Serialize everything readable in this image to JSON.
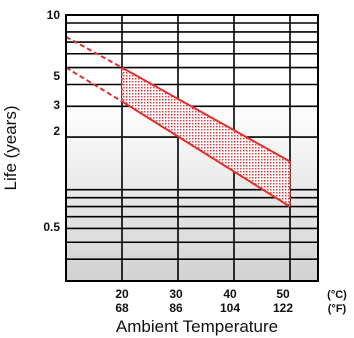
{
  "chart_data": {
    "type": "area",
    "xlabel": "Ambient Temperature",
    "ylabel": "Life (years)",
    "x_ticks_c": [
      "20",
      "30",
      "40",
      "50"
    ],
    "x_ticks_f": [
      "68",
      "86",
      "104",
      "122"
    ],
    "x_unit_c": "(°C)",
    "x_unit_f": "(°F)",
    "xlim": [
      10,
      55
    ],
    "ylim": [
      0.3,
      10
    ],
    "y_scale": "log",
    "y_ticks": [
      "10",
      "5",
      "3",
      "2",
      "0.5"
    ],
    "series": [
      {
        "x": [
          10,
          20,
          50
        ],
        "y": [
          7.5,
          5.0,
          1.45
        ]
      },
      {
        "x": [
          10,
          20,
          50
        ],
        "y": [
          5.0,
          3.2,
          0.8
        ]
      }
    ],
    "colors": {
      "band": "#e03030",
      "fill_dot": "#e04040",
      "shade": "#d4d4d4"
    }
  }
}
